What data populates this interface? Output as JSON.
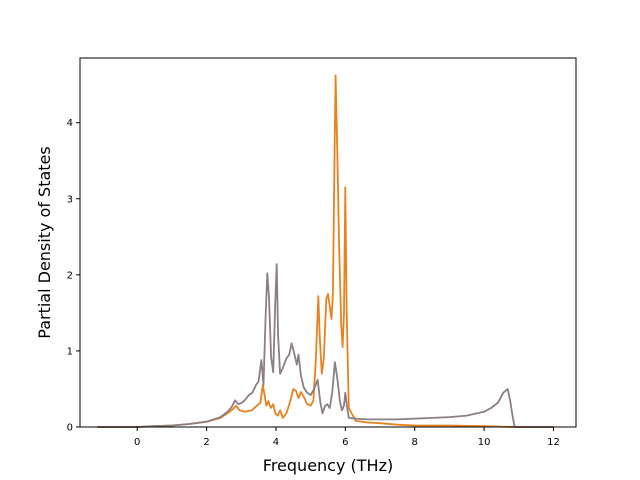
{
  "chart_data": {
    "type": "line",
    "title": "",
    "xlabel": "Frequency (THz)",
    "ylabel": "Partial Density of States",
    "xlim": [
      -1.65,
      12.65
    ],
    "ylim": [
      0,
      4.85
    ],
    "xticks": [
      0,
      2,
      4,
      6,
      8,
      10,
      12
    ],
    "yticks": [
      0,
      1,
      2,
      3,
      4
    ],
    "grid": false,
    "legend": "none",
    "series": [
      {
        "color": "#e8821f",
        "points": [
          [
            -1.15,
            0
          ],
          [
            0,
            0
          ],
          [
            0.5,
            0.01
          ],
          [
            1,
            0.02
          ],
          [
            1.5,
            0.04
          ],
          [
            2,
            0.07
          ],
          [
            2.4,
            0.12
          ],
          [
            2.6,
            0.18
          ],
          [
            2.75,
            0.23
          ],
          [
            2.85,
            0.28
          ],
          [
            2.95,
            0.22
          ],
          [
            3.1,
            0.2
          ],
          [
            3.3,
            0.22
          ],
          [
            3.45,
            0.28
          ],
          [
            3.55,
            0.32
          ],
          [
            3.62,
            0.55
          ],
          [
            3.68,
            0.4
          ],
          [
            3.72,
            0.28
          ],
          [
            3.78,
            0.34
          ],
          [
            3.85,
            0.25
          ],
          [
            3.92,
            0.3
          ],
          [
            3.98,
            0.18
          ],
          [
            4.05,
            0.15
          ],
          [
            4.12,
            0.22
          ],
          [
            4.2,
            0.12
          ],
          [
            4.3,
            0.18
          ],
          [
            4.42,
            0.35
          ],
          [
            4.5,
            0.5
          ],
          [
            4.58,
            0.47
          ],
          [
            4.65,
            0.38
          ],
          [
            4.72,
            0.46
          ],
          [
            4.8,
            0.4
          ],
          [
            4.9,
            0.3
          ],
          [
            5.0,
            0.28
          ],
          [
            5.08,
            0.35
          ],
          [
            5.15,
            0.9
          ],
          [
            5.22,
            1.72
          ],
          [
            5.26,
            1.2
          ],
          [
            5.32,
            0.7
          ],
          [
            5.38,
            0.9
          ],
          [
            5.45,
            1.68
          ],
          [
            5.5,
            1.75
          ],
          [
            5.56,
            1.55
          ],
          [
            5.6,
            1.42
          ],
          [
            5.64,
            1.75
          ],
          [
            5.68,
            3.2
          ],
          [
            5.72,
            4.62
          ],
          [
            5.76,
            3.8
          ],
          [
            5.82,
            2.4
          ],
          [
            5.88,
            1.35
          ],
          [
            5.92,
            1.05
          ],
          [
            5.96,
            1.5
          ],
          [
            6.0,
            3.15
          ],
          [
            6.04,
            1.5
          ],
          [
            6.1,
            0.25
          ],
          [
            6.3,
            0.08
          ],
          [
            6.6,
            0.06
          ],
          [
            7,
            0.05
          ],
          [
            7.5,
            0.03
          ],
          [
            8,
            0.02
          ],
          [
            9,
            0.02
          ],
          [
            10,
            0.01
          ],
          [
            10.85,
            0
          ],
          [
            12,
            0
          ]
        ]
      },
      {
        "color": "#8c7e82",
        "points": [
          [
            -1.15,
            0
          ],
          [
            0,
            0
          ],
          [
            0.5,
            0.01
          ],
          [
            1,
            0.02
          ],
          [
            1.5,
            0.04
          ],
          [
            2,
            0.07
          ],
          [
            2.4,
            0.13
          ],
          [
            2.6,
            0.2
          ],
          [
            2.72,
            0.26
          ],
          [
            2.82,
            0.35
          ],
          [
            2.92,
            0.3
          ],
          [
            3.02,
            0.32
          ],
          [
            3.12,
            0.36
          ],
          [
            3.22,
            0.42
          ],
          [
            3.32,
            0.45
          ],
          [
            3.42,
            0.55
          ],
          [
            3.5,
            0.6
          ],
          [
            3.58,
            0.88
          ],
          [
            3.64,
            0.55
          ],
          [
            3.7,
            1.45
          ],
          [
            3.75,
            2.02
          ],
          [
            3.8,
            1.7
          ],
          [
            3.86,
            0.92
          ],
          [
            3.92,
            0.72
          ],
          [
            3.98,
            1.65
          ],
          [
            4.02,
            2.14
          ],
          [
            4.06,
            1.2
          ],
          [
            4.12,
            0.7
          ],
          [
            4.2,
            0.78
          ],
          [
            4.3,
            0.9
          ],
          [
            4.38,
            0.95
          ],
          [
            4.45,
            1.1
          ],
          [
            4.52,
            0.98
          ],
          [
            4.6,
            0.82
          ],
          [
            4.65,
            0.95
          ],
          [
            4.72,
            0.68
          ],
          [
            4.8,
            0.52
          ],
          [
            4.9,
            0.45
          ],
          [
            5.0,
            0.42
          ],
          [
            5.1,
            0.5
          ],
          [
            5.2,
            0.62
          ],
          [
            5.28,
            0.32
          ],
          [
            5.34,
            0.18
          ],
          [
            5.42,
            0.28
          ],
          [
            5.48,
            0.3
          ],
          [
            5.55,
            0.25
          ],
          [
            5.62,
            0.45
          ],
          [
            5.7,
            0.85
          ],
          [
            5.78,
            0.6
          ],
          [
            5.84,
            0.35
          ],
          [
            5.9,
            0.22
          ],
          [
            5.96,
            0.28
          ],
          [
            6.0,
            0.45
          ],
          [
            6.04,
            0.3
          ],
          [
            6.1,
            0.12
          ],
          [
            6.3,
            0.11
          ],
          [
            6.6,
            0.1
          ],
          [
            7,
            0.1
          ],
          [
            7.5,
            0.1
          ],
          [
            8,
            0.11
          ],
          [
            8.5,
            0.12
          ],
          [
            9,
            0.13
          ],
          [
            9.5,
            0.15
          ],
          [
            9.8,
            0.18
          ],
          [
            10.0,
            0.2
          ],
          [
            10.2,
            0.25
          ],
          [
            10.4,
            0.32
          ],
          [
            10.55,
            0.45
          ],
          [
            10.68,
            0.5
          ],
          [
            10.75,
            0.35
          ],
          [
            10.82,
            0.15
          ],
          [
            10.88,
            0
          ],
          [
            12,
            0
          ]
        ]
      }
    ]
  }
}
